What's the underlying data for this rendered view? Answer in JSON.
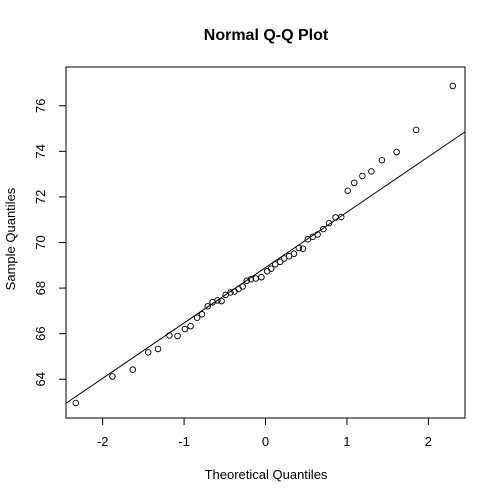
{
  "chart_data": {
    "type": "scatter",
    "title": "Normal Q-Q Plot",
    "xlabel": "Theoretical Quantiles",
    "ylabel": "Sample Quantiles",
    "xlim": [
      -2.45,
      2.45
    ],
    "ylim": [
      62.3,
      77.7
    ],
    "x_ticks": [
      -2,
      -1,
      0,
      1,
      2
    ],
    "x_tick_labels": [
      "-2",
      "-1",
      "0",
      "1",
      "2"
    ],
    "y_ticks": [
      64,
      66,
      68,
      70,
      72,
      74,
      76
    ],
    "y_tick_labels": [
      "64",
      "66",
      "68",
      "70",
      "72",
      "74",
      "76"
    ],
    "grid": false,
    "reference_line": {
      "intercept": 68.9,
      "slope": 2.43
    },
    "series": [
      {
        "marker": "open-circle",
        "points": [
          {
            "x": -2.33,
            "y": 62.96
          },
          {
            "x": -1.88,
            "y": 64.12
          },
          {
            "x": -1.63,
            "y": 64.42
          },
          {
            "x": -1.44,
            "y": 65.18
          },
          {
            "x": -1.32,
            "y": 65.33
          },
          {
            "x": -1.18,
            "y": 65.92
          },
          {
            "x": -1.08,
            "y": 65.9
          },
          {
            "x": -0.99,
            "y": 66.2
          },
          {
            "x": -0.92,
            "y": 66.33
          },
          {
            "x": -0.84,
            "y": 66.7
          },
          {
            "x": -0.78,
            "y": 66.85
          },
          {
            "x": -0.71,
            "y": 67.2
          },
          {
            "x": -0.65,
            "y": 67.38
          },
          {
            "x": -0.59,
            "y": 67.46
          },
          {
            "x": -0.54,
            "y": 67.43
          },
          {
            "x": -0.49,
            "y": 67.7
          },
          {
            "x": -0.43,
            "y": 67.81
          },
          {
            "x": -0.38,
            "y": 67.85
          },
          {
            "x": -0.33,
            "y": 67.96
          },
          {
            "x": -0.28,
            "y": 68.07
          },
          {
            "x": -0.23,
            "y": 68.32
          },
          {
            "x": -0.18,
            "y": 68.39
          },
          {
            "x": -0.12,
            "y": 68.42
          },
          {
            "x": -0.05,
            "y": 68.48
          },
          {
            "x": 0.02,
            "y": 68.74
          },
          {
            "x": 0.07,
            "y": 68.85
          },
          {
            "x": 0.12,
            "y": 69.04
          },
          {
            "x": 0.18,
            "y": 69.15
          },
          {
            "x": 0.23,
            "y": 69.3
          },
          {
            "x": 0.29,
            "y": 69.4
          },
          {
            "x": 0.35,
            "y": 69.51
          },
          {
            "x": 0.41,
            "y": 69.76
          },
          {
            "x": 0.46,
            "y": 69.73
          },
          {
            "x": 0.52,
            "y": 70.14
          },
          {
            "x": 0.58,
            "y": 70.25
          },
          {
            "x": 0.64,
            "y": 70.35
          },
          {
            "x": 0.71,
            "y": 70.59
          },
          {
            "x": 0.78,
            "y": 70.85
          },
          {
            "x": 0.86,
            "y": 71.1
          },
          {
            "x": 0.93,
            "y": 71.12
          },
          {
            "x": 1.01,
            "y": 72.27
          },
          {
            "x": 1.09,
            "y": 72.62
          },
          {
            "x": 1.19,
            "y": 72.92
          },
          {
            "x": 1.3,
            "y": 73.12
          },
          {
            "x": 1.43,
            "y": 73.61
          },
          {
            "x": 1.61,
            "y": 73.97
          },
          {
            "x": 1.85,
            "y": 74.94
          },
          {
            "x": 2.3,
            "y": 76.87
          }
        ]
      }
    ]
  }
}
